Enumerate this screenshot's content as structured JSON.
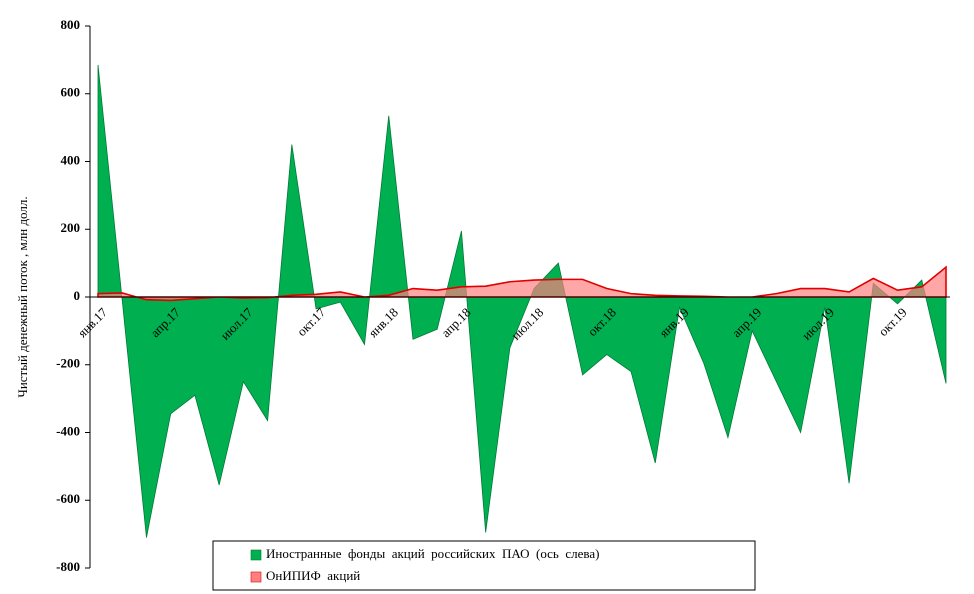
{
  "chart_data": {
    "type": "area",
    "y_label": "Чистый денежный поток , млн долл.",
    "categories": [
      "янв.17",
      null,
      null,
      "апр.17",
      null,
      null,
      "июл.17",
      null,
      null,
      "окт.17",
      null,
      null,
      "янв.18",
      null,
      null,
      "апр.18",
      null,
      null,
      "июл.18",
      null,
      null,
      "окт.18",
      null,
      null,
      "янв.19",
      null,
      null,
      "апр.19",
      null,
      null,
      "июл.19",
      null,
      null,
      "окт.19",
      null,
      null
    ],
    "series": [
      {
        "name": "Иностранные  фонды  акций  российских  ПАО  (ось  слева)",
        "color": "#00b050",
        "stroke": "#007a38",
        "values": [
          685,
          -10,
          -710,
          -345,
          -290,
          -555,
          -250,
          -365,
          450,
          -35,
          -15,
          -140,
          535,
          -125,
          -95,
          195,
          -695,
          -150,
          25,
          100,
          -230,
          -170,
          -220,
          -490,
          -30,
          -195,
          -415,
          -100,
          -250,
          -400,
          -30,
          -550,
          40,
          -20,
          50,
          -255
        ]
      },
      {
        "name": "ОнИПИФ  акций",
        "color": "#ff8080",
        "stroke": "#e00000",
        "values": [
          10,
          12,
          -8,
          -10,
          -5,
          0,
          -3,
          -2,
          5,
          8,
          15,
          0,
          5,
          25,
          20,
          30,
          32,
          45,
          50,
          52,
          52,
          25,
          10,
          5,
          3,
          2,
          0,
          0,
          10,
          25,
          25,
          15,
          55,
          20,
          30,
          88
        ]
      }
    ],
    "ylim": [
      -800,
      800
    ],
    "yticks": [
      -800,
      -600,
      -400,
      -200,
      0,
      200,
      400,
      600,
      800
    ]
  }
}
